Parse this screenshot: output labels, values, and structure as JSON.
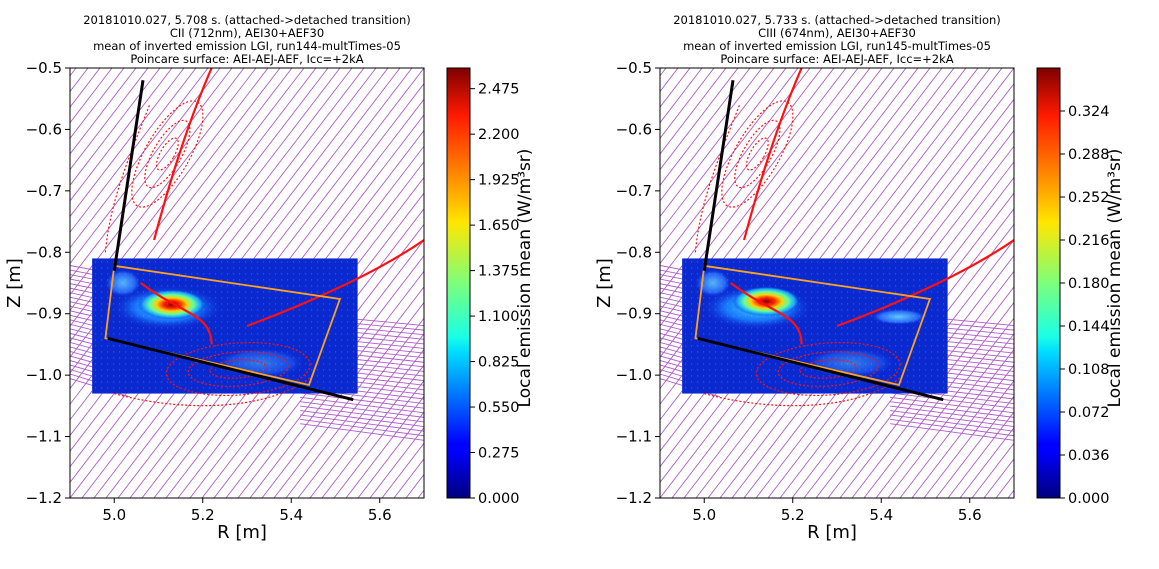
{
  "chart_data": [
    {
      "type": "heatmap",
      "title_lines": [
        "20181010.027, 5.708 s. (attached->detached transition)",
        "CII (712nm), AEI30+AEF30",
        "mean of inverted emission LGI, run144-multTimes-05",
        "Poincare surface: AEI-AEJ-AEF, Icc=+2kA"
      ],
      "xlabel": "R [m]",
      "ylabel": "Z [m]",
      "xlim": [
        4.9,
        5.7
      ],
      "ylim": [
        -1.2,
        -0.5
      ],
      "xticks": [
        "5.0",
        "5.2",
        "5.4",
        "5.6"
      ],
      "yticks": [
        "−0.5",
        "−0.6",
        "−0.7",
        "−0.8",
        "−0.9",
        "−1.0",
        "−1.1",
        "−1.2"
      ],
      "colorbar_label": "Local emission mean (W/m³sr)",
      "colorbar_ticks": [
        "0.000",
        "0.275",
        "0.550",
        "0.825",
        "1.100",
        "1.375",
        "1.650",
        "1.925",
        "2.200",
        "2.475"
      ],
      "colorbar_range": [
        0,
        2.6
      ],
      "hotspot": {
        "R": 5.13,
        "Z": -0.885,
        "value": 2.5
      },
      "grid": false
    },
    {
      "type": "heatmap",
      "title_lines": [
        "20181010.027, 5.733 s. (attached->detached transition)",
        "CIII (674nm), AEI30+AEF30",
        "mean of inverted emission LGI, run145-multTimes-05",
        "Poincare surface: AEI-AEJ-AEF, Icc=+2kA"
      ],
      "xlabel": "R [m]",
      "ylabel": "Z [m]",
      "xlim": [
        4.9,
        5.7
      ],
      "ylim": [
        -1.2,
        -0.5
      ],
      "xticks": [
        "5.0",
        "5.2",
        "5.4",
        "5.6"
      ],
      "yticks": [
        "−0.5",
        "−0.6",
        "−0.7",
        "−0.8",
        "−0.9",
        "−1.0",
        "−1.1",
        "−1.2"
      ],
      "colorbar_label": "Local emission mean (W/m³sr)",
      "colorbar_ticks": [
        "0.000",
        "0.036",
        "0.072",
        "0.108",
        "0.144",
        "0.180",
        "0.216",
        "0.252",
        "0.288",
        "0.324"
      ],
      "colorbar_range": [
        0,
        0.36
      ],
      "hotspot": {
        "R": 5.14,
        "Z": -0.88,
        "value": 0.34
      },
      "grid": false
    }
  ]
}
